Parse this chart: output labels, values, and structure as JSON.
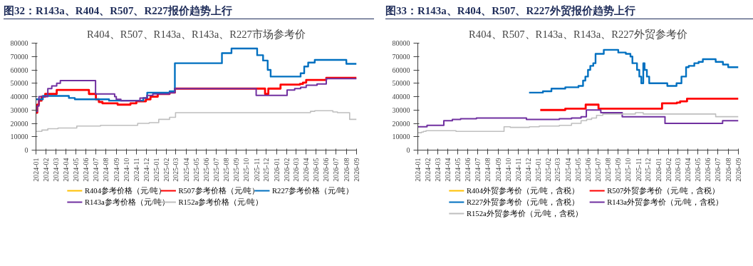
{
  "chart_data": [
    {
      "type": "step",
      "title": "图32：R143a、R404、R507、R227报价趋势上行",
      "subtitle": "R404、R507、R143a、R143a、R227市场参考价",
      "xlim": [
        "2024-01-01",
        "2026-09-01"
      ],
      "xticks": [
        "2024-01",
        "2024-02",
        "2024-03",
        "2024-04",
        "2024-05",
        "2024-06",
        "2024-07",
        "2024-08",
        "2024-09",
        "2024-10",
        "2024-11",
        "2024-12",
        "2025-01",
        "2025-02",
        "2025-03",
        "2025-04",
        "2025-05",
        "2025-06",
        "2025-07",
        "2025-08",
        "2025-09",
        "2025-10",
        "2025-11",
        "2025-12",
        "2026-01",
        "2026-02",
        "2026-03",
        "2026-04",
        "2026-05",
        "2026-06",
        "2026-07",
        "2026-08",
        "2026-09"
      ],
      "ylim": [
        0,
        80000
      ],
      "yticks": [
        0,
        10000,
        20000,
        30000,
        40000,
        50000,
        60000,
        70000,
        80000
      ],
      "legend": "bottom",
      "grid": false,
      "series": [
        {
          "name": "R404参考价格（元/吨）",
          "color": "#ffc000"
        },
        {
          "name": "R507参考价格（元/吨）",
          "color": "#ff0000",
          "x": [
            "2024-01-01",
            "2024-01-05",
            "2024-01-10",
            "2024-01-18",
            "2024-01-29",
            "2024-03-04",
            "2024-06-10",
            "2024-07-01",
            "2024-07-10",
            "2024-07-21",
            "2024-09-05",
            "2024-10-14",
            "2024-11-01",
            "2024-11-30",
            "2024-12-14",
            "2025-01-05",
            "2025-02-10",
            "2025-02-26",
            "2025-11-27",
            "2025-12-07",
            "2026-01-13",
            "2026-03-13",
            "2026-03-22",
            "2026-04-01",
            "2026-06-01",
            "2026-09-01"
          ],
          "values": [
            28000,
            34000,
            37000,
            40000,
            42000,
            45000,
            42000,
            38000,
            36000,
            35000,
            34000,
            35000,
            36500,
            38000,
            40000,
            42000,
            43000,
            46000,
            42000,
            46000,
            49000,
            49500,
            50500,
            52500,
            54000,
            54000
          ]
        },
        {
          "name": "R227参考价格（元/吨）",
          "color": "#0070c0",
          "x": [
            "2024-01-01",
            "2024-01-22",
            "2024-04-10",
            "2024-04-28",
            "2024-08-10",
            "2024-11-22",
            "2024-12-04",
            "2025-02-10",
            "2025-02-26",
            "2025-07-19",
            "2025-08-17",
            "2025-11-03",
            "2025-11-21",
            "2025-12-05",
            "2025-12-14",
            "2026-03-15",
            "2026-03-26",
            "2026-04-07",
            "2026-04-27",
            "2026-08-01",
            "2026-09-01"
          ],
          "values": [
            38000,
            40500,
            39000,
            38000,
            37000,
            39000,
            43000,
            44000,
            65000,
            72500,
            76000,
            71000,
            67000,
            60000,
            55000,
            57500,
            62500,
            65500,
            67500,
            64500,
            64500
          ]
        },
        {
          "name": "R143a参考价格（元/吨）",
          "color": "#7030a0",
          "x": [
            "2024-01-01",
            "2024-01-05",
            "2024-01-10",
            "2024-02-06",
            "2024-02-18",
            "2024-03-04",
            "2024-03-15",
            "2024-06-30",
            "2024-08-27",
            "2024-09-01",
            "2024-09-15",
            "2024-11-12",
            "2024-12-03",
            "2024-12-21",
            "2025-02-10",
            "2025-02-26",
            "2025-10-31",
            "2026-02-02",
            "2026-02-25",
            "2026-03-15",
            "2026-04-01",
            "2026-05-04",
            "2026-06-01",
            "2026-09-01"
          ],
          "values": [
            29000,
            33000,
            40000,
            46000,
            48000,
            50000,
            52000,
            42000,
            40000,
            38000,
            37000,
            39000,
            41000,
            42000,
            43000,
            46000,
            41000,
            45000,
            46000,
            47000,
            48500,
            49500,
            53500,
            53500
          ]
        },
        {
          "name": "R152a参考价格（元/吨）",
          "color": "#bfbfbf",
          "x": [
            "2024-01-01",
            "2024-01-19",
            "2024-02-06",
            "2024-03-08",
            "2024-05-04",
            "2024-07-15",
            "2024-11-05",
            "2024-12-10",
            "2025-01-08",
            "2025-02-10",
            "2025-02-28",
            "2026-04-14",
            "2026-04-27",
            "2026-06-21",
            "2026-07-05",
            "2026-08-11",
            "2026-09-01"
          ],
          "values": [
            14000,
            15000,
            16000,
            16500,
            18000,
            18500,
            20000,
            20500,
            23000,
            24500,
            28000,
            29000,
            29500,
            28500,
            28000,
            23000,
            23000
          ]
        }
      ]
    },
    {
      "type": "step",
      "title": "图33：R143a、R404、R507、R227外贸报价趋势上行",
      "subtitle": "R404、R507、R143a、R143a、R227外贸参考价",
      "xlim": [
        "2024-01-01",
        "2026-09-01"
      ],
      "xticks": [
        "2024-01",
        "2024-02",
        "2024-03",
        "2024-04",
        "2024-05",
        "2024-06",
        "2024-07",
        "2024-08",
        "2024-09",
        "2024-10",
        "2024-11",
        "2024-12",
        "2025-01",
        "2025-02",
        "2025-03",
        "2025-04",
        "2025-05",
        "2025-06",
        "2025-07",
        "2025-08",
        "2025-09",
        "2025-10",
        "2025-11",
        "2025-12",
        "2026-01",
        "2026-02",
        "2026-03",
        "2026-04",
        "2026-05",
        "2026-06",
        "2026-07",
        "2026-08",
        "2026-09"
      ],
      "ylim": [
        0,
        80000
      ],
      "yticks": [
        0,
        10000,
        20000,
        30000,
        40000,
        50000,
        60000,
        70000,
        80000
      ],
      "legend": "bottom",
      "grid": false,
      "series": [
        {
          "name": "R404外贸参考价（元/吨，含税）",
          "color": "#ffc000"
        },
        {
          "name": "R507外贸参考价（元/吨，含税）",
          "color": "#ff0000",
          "x": [
            "2025-01-07",
            "2025-03-24",
            "2025-05-25",
            "2025-07-03",
            "2026-01-12",
            "2026-02-26",
            "2026-03-08",
            "2026-03-29",
            "2026-09-01"
          ],
          "values": [
            30000,
            31000,
            34000,
            31000,
            35000,
            35500,
            36500,
            38500,
            38500
          ]
        },
        {
          "name": "R227外贸参考价（元/吨，含税）",
          "color": "#0070c0",
          "x": [
            "2024-12-04",
            "2025-01-15",
            "2025-02-10",
            "2025-03-24",
            "2025-05-03",
            "2025-05-17",
            "2025-05-24",
            "2025-06-01",
            "2025-06-08",
            "2025-06-17",
            "2025-06-24",
            "2025-07-19",
            "2025-09-01",
            "2025-09-24",
            "2025-10-08",
            "2025-10-14",
            "2025-10-28",
            "2025-11-04",
            "2025-11-10",
            "2025-11-16",
            "2025-11-20",
            "2025-11-27",
            "2025-12-04",
            "2026-01-28",
            "2026-02-25",
            "2026-03-12",
            "2026-03-26",
            "2026-04-03",
            "2026-04-20",
            "2026-05-03",
            "2026-05-16",
            "2026-06-24",
            "2026-07-16",
            "2026-08-01",
            "2026-09-01"
          ],
          "values": [
            43000,
            44000,
            46000,
            47000,
            48000,
            52000,
            55000,
            60000,
            63000,
            65000,
            72000,
            75000,
            73000,
            72000,
            70000,
            65000,
            60000,
            55000,
            50000,
            65000,
            60000,
            55000,
            50000,
            48000,
            50000,
            55000,
            62000,
            63000,
            65000,
            66000,
            68000,
            66000,
            64000,
            62000,
            62000
          ]
        },
        {
          "name": "R143a外贸参考价（元/吨，含税）",
          "color": "#7030a0",
          "x": [
            "2024-01-01",
            "2024-01-29",
            "2024-03-20",
            "2024-04-15",
            "2024-05-10",
            "2024-06-27",
            "2024-11-26",
            "2025-03-06",
            "2025-04-12",
            "2025-05-11",
            "2025-05-27",
            "2025-07-10",
            "2025-09-13",
            "2026-01-21",
            "2026-07-15",
            "2026-09-01"
          ],
          "values": [
            17500,
            18500,
            22000,
            23000,
            23500,
            24000,
            23000,
            23500,
            24000,
            25000,
            30000,
            28000,
            25000,
            20000,
            22000,
            22000
          ]
        },
        {
          "name": "R152a外贸参考价（元/吨，含税）",
          "color": "#bfbfbf",
          "x": [
            "2024-01-01",
            "2024-01-12",
            "2024-01-18",
            "2024-01-26",
            "2024-04-26",
            "2024-09-19",
            "2024-10-08",
            "2024-12-05",
            "2025-01-04",
            "2025-03-06",
            "2025-04-12",
            "2025-05-11",
            "2025-05-28",
            "2025-06-12",
            "2025-06-27",
            "2025-07-16",
            "2025-10-23",
            "2025-11-16",
            "2026-06-24",
            "2026-09-01"
          ],
          "values": [
            13000,
            13500,
            14000,
            14500,
            14000,
            17500,
            17000,
            17500,
            18000,
            18500,
            20000,
            22000,
            23000,
            24000,
            26000,
            27000,
            28000,
            27000,
            25000,
            25000
          ]
        }
      ]
    }
  ]
}
